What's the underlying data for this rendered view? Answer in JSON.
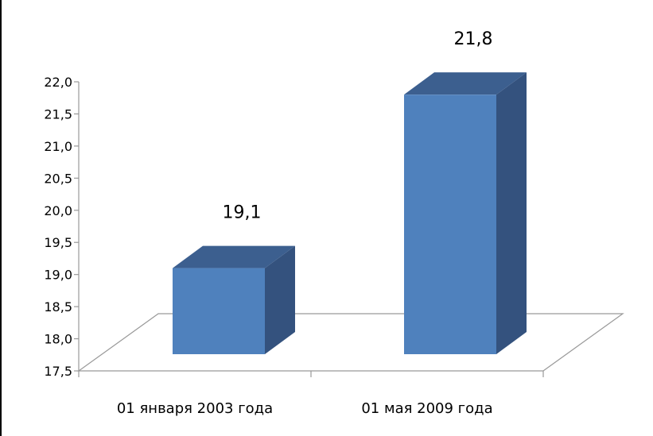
{
  "chart_data": {
    "type": "bar",
    "categories": [
      "01 января 2003 года",
      "01 мая 2009 года"
    ],
    "values": [
      19.1,
      21.8
    ],
    "data_labels": [
      "19,1",
      "21,8"
    ],
    "yticks": [
      "17,5",
      "18,0",
      "18,5",
      "19,0",
      "19,5",
      "20,0",
      "20,5",
      "21,0",
      "21,5",
      "22,0"
    ],
    "ylim": [
      17.5,
      22.0
    ],
    "style": "3d-column",
    "grid": false,
    "legend": "none",
    "colors": {
      "front": "#4f81bd",
      "side": "#34527e",
      "top": "#3c5f8f",
      "floor_line": "#999999"
    }
  }
}
